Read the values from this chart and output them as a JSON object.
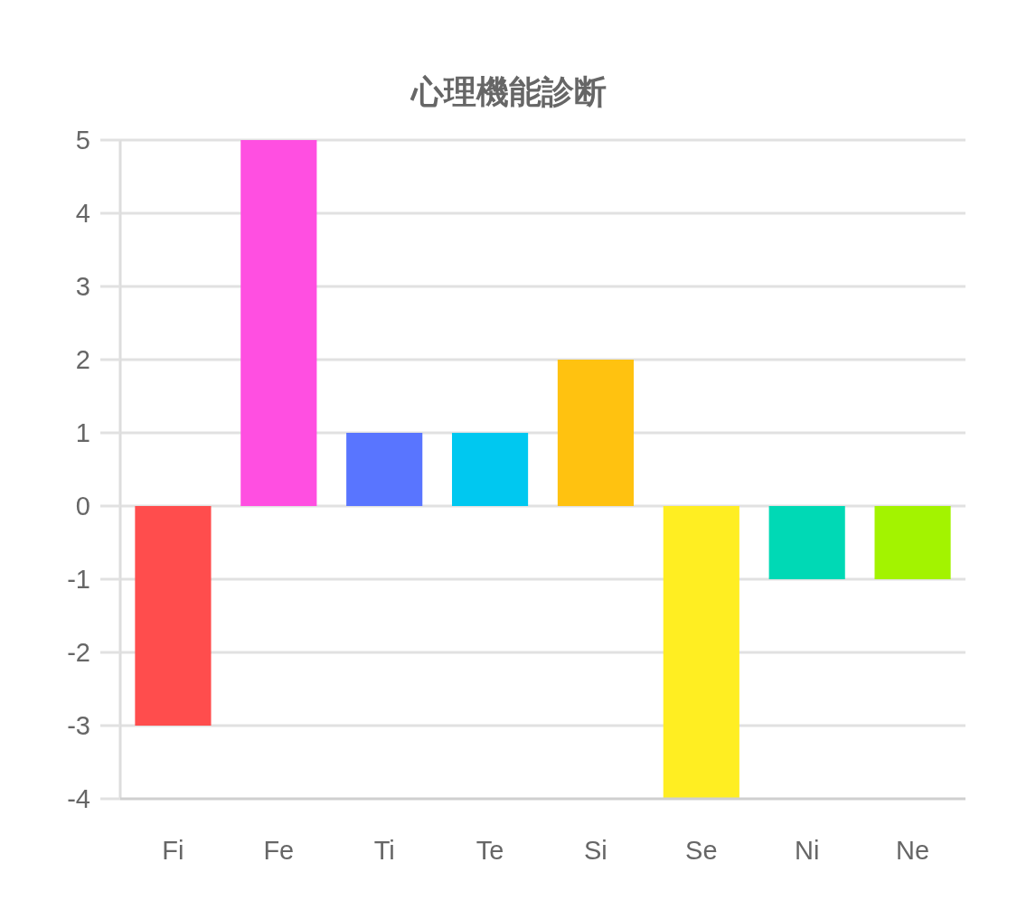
{
  "chart_data": {
    "type": "bar",
    "title": "心理機能診断",
    "categories": [
      "Fi",
      "Fe",
      "Ti",
      "Te",
      "Si",
      "Se",
      "Ni",
      "Ne"
    ],
    "values": [
      -3,
      5,
      1,
      1,
      2,
      -4,
      -1,
      -1
    ],
    "colors": [
      "#ff4d4d",
      "#ff4fe1",
      "#5975ff",
      "#00c8f0",
      "#ffc210",
      "#ffee22",
      "#00d9b5",
      "#a3f300"
    ],
    "ylim": [
      -4,
      5
    ],
    "yticks": [
      -4,
      -3,
      -2,
      -1,
      0,
      1,
      2,
      3,
      4,
      5
    ],
    "grid": "y"
  }
}
